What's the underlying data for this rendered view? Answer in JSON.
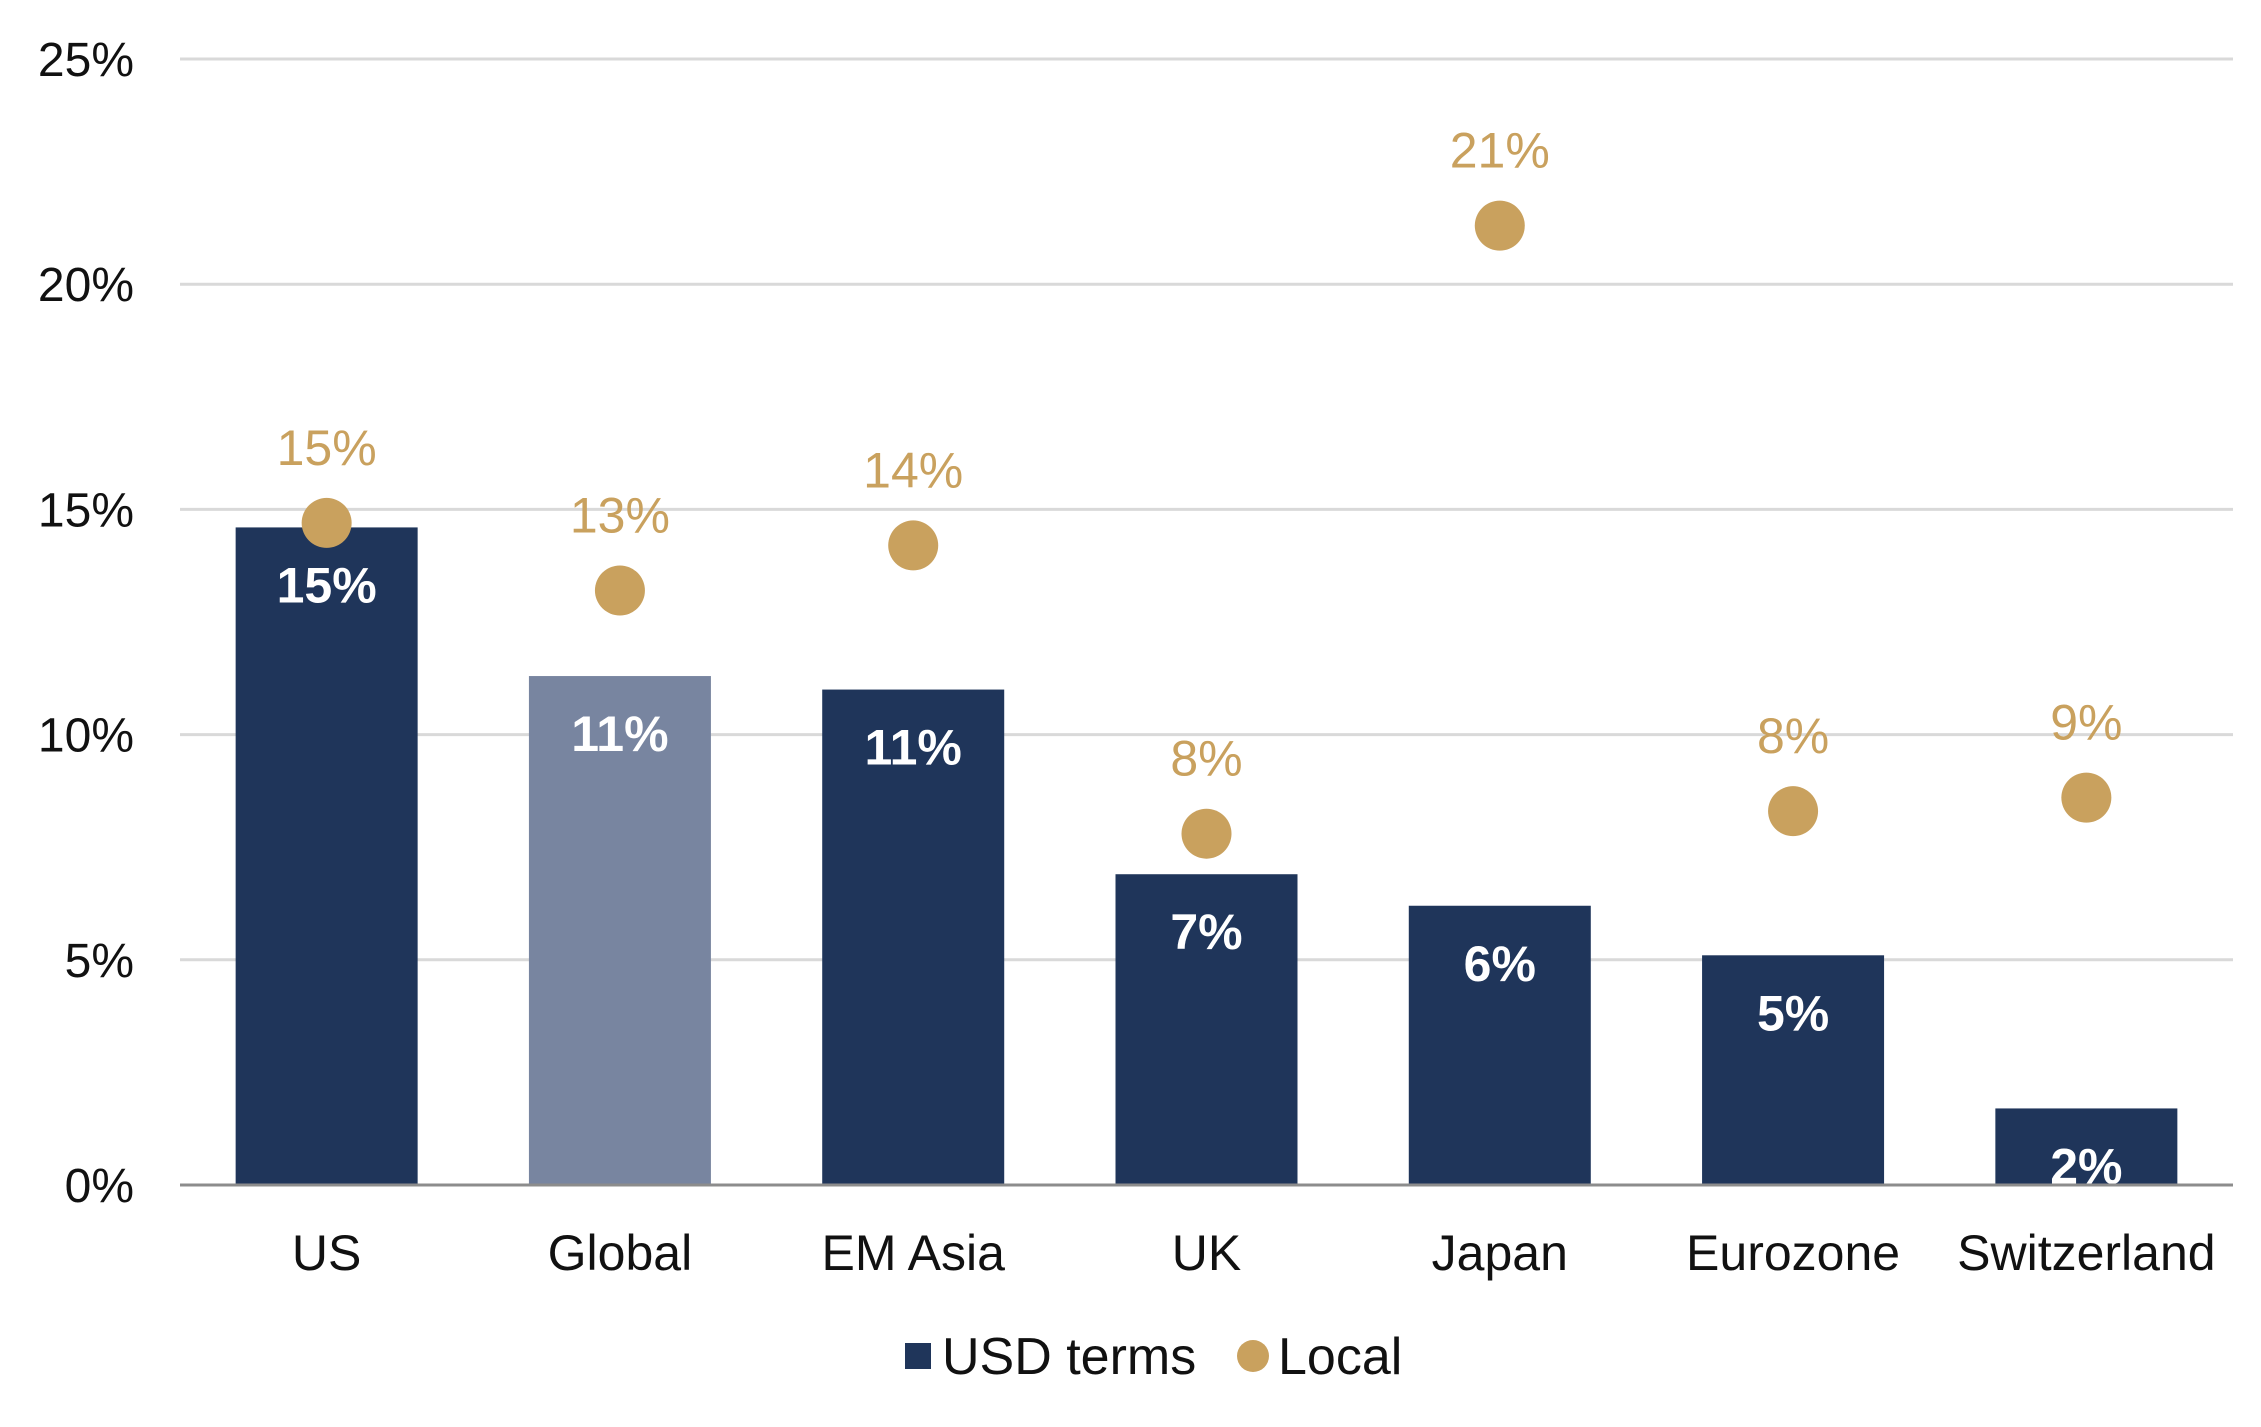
{
  "chart_data": {
    "type": "bar",
    "categories": [
      "US",
      "Global",
      "EM Asia",
      "UK",
      "Japan",
      "Eurozone",
      "Switzerland"
    ],
    "series": [
      {
        "name": "USD terms",
        "type": "bar",
        "values": [
          14.6,
          11.3,
          11.0,
          6.9,
          6.2,
          5.1,
          1.7
        ],
        "labels": [
          "15%",
          "11%",
          "11%",
          "7%",
          "6%",
          "5%",
          "2%"
        ],
        "color": "#1f355a",
        "highlight_color": "#7885a0",
        "highlight_category": "Global"
      },
      {
        "name": "Local",
        "type": "scatter",
        "values": [
          14.7,
          13.2,
          14.2,
          7.8,
          21.3,
          8.3,
          8.6
        ],
        "labels": [
          "15%",
          "13%",
          "14%",
          "8%",
          "21%",
          "8%",
          "9%"
        ],
        "color": "#c9a15e"
      }
    ],
    "ylim": [
      0,
      25
    ],
    "yticks": [
      0,
      5,
      10,
      15,
      20,
      25
    ],
    "ytick_labels": [
      "0%",
      "5%",
      "10%",
      "15%",
      "20%",
      "25%"
    ],
    "title": "",
    "xlabel": "",
    "ylabel": "",
    "grid": true,
    "legend_position": "bottom-center"
  },
  "legend": {
    "items": [
      {
        "label": "USD terms",
        "color": "#1f355a",
        "marker": "square"
      },
      {
        "label": "Local",
        "color": "#c9a15e",
        "marker": "circle"
      }
    ]
  }
}
